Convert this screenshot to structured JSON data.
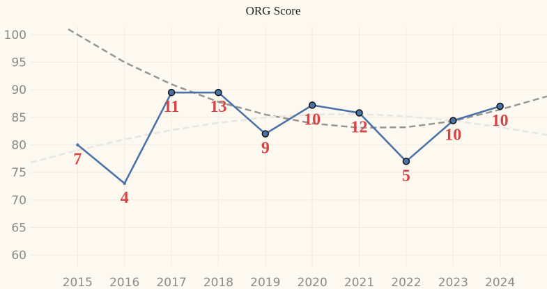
{
  "chart_data": {
    "type": "line",
    "title": "ORG Score",
    "xlabel": "",
    "ylabel": "",
    "x": [
      "2015",
      "2016",
      "2017",
      "2018",
      "2019",
      "2020",
      "2021",
      "2022",
      "2023",
      "2024"
    ],
    "series": [
      {
        "values": [
          80,
          73,
          89.5,
          89.5,
          82,
          87.2,
          85.8,
          77,
          84.4,
          87
        ],
        "data_labels": [
          "7",
          "4",
          "11",
          "13",
          "9",
          "10",
          "12",
          "5",
          "10",
          "10"
        ],
        "marked_points": [
          false,
          false,
          true,
          true,
          true,
          true,
          true,
          true,
          true,
          true
        ],
        "color": "#4a72a8"
      }
    ],
    "trend_lines": [
      {
        "kind": "polynomial",
        "color": "#999590",
        "style": "dashed",
        "points": [
          [
            2014.8,
            101
          ],
          [
            2016,
            95
          ],
          [
            2017,
            91
          ],
          [
            2018,
            87.8
          ],
          [
            2019,
            85.5
          ],
          [
            2020,
            83.9
          ],
          [
            2021,
            83.1
          ],
          [
            2022,
            83.2
          ],
          [
            2023,
            84.3
          ],
          [
            2024,
            86.4
          ],
          [
            2025,
            88.8
          ]
        ]
      },
      {
        "kind": "polynomial",
        "color": "#e8e4de",
        "style": "dashed",
        "points": [
          [
            2014,
            76.8
          ],
          [
            2015,
            79
          ],
          [
            2016,
            81
          ],
          [
            2017,
            82.7
          ],
          [
            2018,
            84
          ],
          [
            2019,
            85
          ],
          [
            2020,
            85.5
          ],
          [
            2021,
            85.6
          ],
          [
            2022,
            85.2
          ],
          [
            2023,
            84.4
          ],
          [
            2024,
            83.2
          ],
          [
            2025,
            81.8
          ]
        ]
      }
    ],
    "y_ticks": [
      60,
      65,
      70,
      75,
      80,
      85,
      90,
      95,
      100
    ],
    "ylim": [
      58,
      101.5
    ],
    "xlim": [
      2014,
      2025
    ],
    "grid": true,
    "legend": "none"
  }
}
